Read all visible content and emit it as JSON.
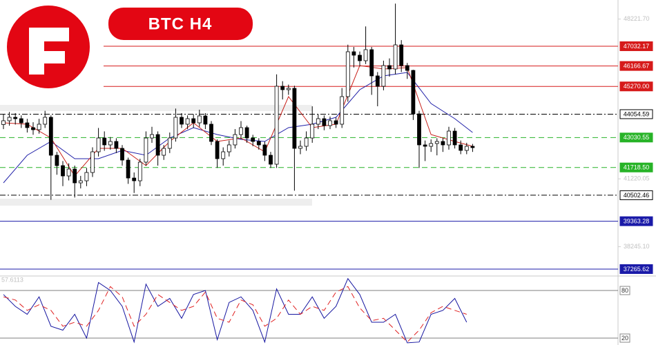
{
  "chart_data": [
    {
      "type": "candlestick",
      "title": "BTC H4",
      "open": [
        43600,
        43766,
        43917,
        43857,
        43675,
        43464,
        43373,
        43615,
        43917,
        42254,
        41800,
        41347,
        41649,
        41044,
        41135,
        41498,
        42405,
        43010,
        42708,
        42859,
        42556,
        42042,
        41256,
        41135,
        41952,
        43010,
        43161,
        42254,
        42556,
        43010,
        43917,
        43615,
        43857,
        43675,
        43978,
        43615,
        42859,
        42103,
        42405,
        42708,
        43161,
        43464,
        43010,
        42859,
        42708,
        42254,
        41861,
        45278,
        45127,
        45187,
        42556,
        42647,
        43010,
        43615,
        43857,
        43554,
        43766,
        43615,
        44824,
        46790,
        46639,
        46397,
        46881,
        45732,
        45278,
        46185,
        46034,
        47092,
        46185,
        45973,
        44068,
        42708,
        42647,
        42768,
        42859,
        42708,
        43312,
        42708,
        42466,
        42647
      ],
      "high": [
        44050,
        44150,
        44100,
        44000,
        43850,
        43700,
        43850,
        44200,
        44000,
        42400,
        42000,
        41900,
        41800,
        41350,
        41700,
        42600,
        43450,
        43300,
        43050,
        43000,
        42700,
        42150,
        41500,
        42100,
        43300,
        43500,
        43300,
        42700,
        43250,
        44300,
        44100,
        44000,
        44050,
        44250,
        44100,
        43750,
        42950,
        42600,
        42900,
        43400,
        43750,
        43550,
        43150,
        43000,
        42850,
        42400,
        45800,
        45500,
        45350,
        45300,
        42900,
        43300,
        44400,
        44050,
        44000,
        43950,
        43900,
        45200,
        47100,
        47000,
        46800,
        47900,
        47000,
        45900,
        46400,
        46500,
        48900,
        47300,
        46300,
        46000,
        44200,
        42900,
        42950,
        43000,
        43000,
        43500,
        43450,
        42900,
        42800,
        42750
      ],
      "low": [
        43400,
        43550,
        43600,
        43450,
        43250,
        43150,
        43200,
        43450,
        40300,
        41400,
        40900,
        41150,
        40400,
        40800,
        40900,
        41300,
        42200,
        42450,
        42500,
        42350,
        41800,
        41000,
        40600,
        40900,
        41800,
        42800,
        41800,
        42050,
        42350,
        42850,
        43450,
        43400,
        43450,
        43500,
        43400,
        42700,
        41700,
        41800,
        42200,
        42550,
        42950,
        42800,
        42650,
        42500,
        42000,
        41700,
        41700,
        44700,
        44900,
        40700,
        42300,
        42450,
        42800,
        43400,
        43350,
        43400,
        43450,
        43450,
        44600,
        46100,
        46150,
        46250,
        44900,
        44400,
        45100,
        45700,
        45800,
        45900,
        45600,
        43800,
        41700,
        42000,
        42400,
        42250,
        42400,
        42500,
        42550,
        42300,
        42300,
        42400
      ],
      "close": [
        43766,
        43917,
        43857,
        43675,
        43464,
        43373,
        43615,
        43917,
        42254,
        41800,
        41347,
        41649,
        41044,
        41135,
        41498,
        42405,
        43010,
        42708,
        42859,
        42556,
        42042,
        41256,
        41135,
        41952,
        43010,
        43161,
        42254,
        42556,
        43010,
        43917,
        43615,
        43857,
        43675,
        43978,
        43615,
        42859,
        42103,
        42405,
        42708,
        43161,
        43464,
        43010,
        42859,
        42708,
        42254,
        41861,
        45278,
        45127,
        45187,
        42556,
        42647,
        43010,
        43615,
        43857,
        43554,
        43766,
        43615,
        44824,
        46790,
        46639,
        46397,
        46881,
        45732,
        45278,
        46185,
        46034,
        47092,
        46185,
        45973,
        44068,
        42708,
        42647,
        42768,
        42859,
        42708,
        43312,
        42708,
        42466,
        42647,
        42587
      ],
      "up_color": "#ffffff",
      "down_color": "#000000",
      "overlays": [
        {
          "color": "#2020a8",
          "x": [
            0,
            4,
            8,
            12,
            16,
            20,
            24,
            28,
            32,
            36,
            40,
            44,
            48,
            52,
            56,
            60,
            64,
            68,
            72,
            76,
            79
          ],
          "values": [
            41044,
            42254,
            42859,
            42103,
            42103,
            42466,
            42254,
            43010,
            43464,
            43161,
            42950,
            42859,
            43464,
            43615,
            43917,
            45127,
            45732,
            45883,
            44522,
            43857,
            43252
          ]
        },
        {
          "color": "#c8201a",
          "x": [
            0,
            4,
            8,
            12,
            16,
            20,
            24,
            28,
            32,
            36,
            40,
            44,
            48,
            52,
            56,
            60,
            64,
            68,
            72,
            76,
            79
          ],
          "values": [
            43675,
            43615,
            43010,
            41347,
            42556,
            42556,
            41801,
            42859,
            43675,
            42859,
            43010,
            42405,
            44824,
            43464,
            43615,
            46185,
            46034,
            46094,
            43161,
            42859,
            42647
          ]
        }
      ],
      "levels": [
        {
          "value": 47032.17,
          "label": "47032.17",
          "color": "#d61a1a",
          "style": "solid"
        },
        {
          "value": 46166.67,
          "label": "46166.67",
          "color": "#d61a1a",
          "style": "solid"
        },
        {
          "value": 45270,
          "label": "45270.00",
          "color": "#d61a1a",
          "style": "solid"
        },
        {
          "value": 44054.59,
          "label": "44054.59",
          "color": "#000000",
          "style": "dashdot"
        },
        {
          "value": 43030.55,
          "label": "43030.55",
          "color": "#27b327",
          "style": "dashed"
        },
        {
          "value": 41718.5,
          "label": "41718.50",
          "color": "#27b327",
          "style": "dashed"
        },
        {
          "value": 40502.46,
          "label": "40502.46",
          "color": "#000000",
          "style": "dashdot"
        },
        {
          "value": 39363.28,
          "label": "39363.28",
          "color": "#1a1aa8",
          "style": "solid"
        },
        {
          "value": 37265.62,
          "label": "37265.62",
          "color": "#1a1aa8",
          "style": "solid"
        }
      ],
      "ylim": [
        36962,
        49058
      ],
      "yticks": [
        {
          "value": 48221.7,
          "label": "48221.70"
        },
        {
          "value": 41220.05,
          "label": "41220.05"
        },
        {
          "value": 38245.1,
          "label": "38245.10"
        }
      ]
    },
    {
      "type": "line",
      "title": "57.6113",
      "x": [
        0,
        2,
        4,
        6,
        8,
        10,
        12,
        14,
        16,
        18,
        20,
        22,
        24,
        26,
        28,
        30,
        32,
        34,
        36,
        38,
        40,
        42,
        44,
        46,
        48,
        50,
        52,
        54,
        56,
        58,
        60,
        62,
        64,
        66,
        68,
        70,
        72,
        74,
        76,
        78
      ],
      "series": [
        {
          "color": "#1515a0",
          "style": "solid",
          "values": [
            75,
            60,
            50,
            72,
            35,
            30,
            50,
            20,
            90,
            80,
            60,
            15,
            88,
            60,
            70,
            45,
            75,
            80,
            18,
            65,
            72,
            55,
            15,
            82,
            50,
            50,
            72,
            45,
            60,
            95,
            75,
            40,
            40,
            50,
            14,
            15,
            50,
            55,
            70,
            40
          ]
        },
        {
          "color": "#e02020",
          "style": "dashed",
          "values": [
            72,
            68,
            55,
            62,
            55,
            35,
            40,
            35,
            55,
            85,
            72,
            35,
            50,
            75,
            65,
            55,
            60,
            78,
            45,
            40,
            68,
            62,
            35,
            45,
            68,
            50,
            60,
            55,
            78,
            85,
            58,
            42,
            45,
            30,
            15,
            30,
            52,
            60,
            55,
            50
          ]
        }
      ],
      "ylim": [
        11.3,
        98.3
      ],
      "yticks": [
        80,
        20
      ]
    }
  ]
}
